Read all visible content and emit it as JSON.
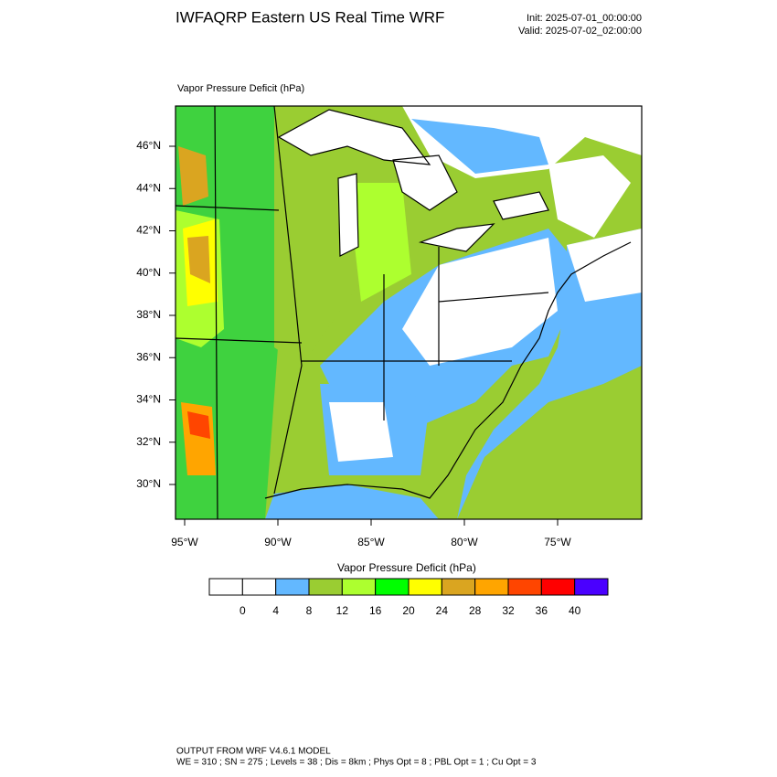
{
  "header": {
    "title": "IWFAQRP Eastern US Real Time WRF",
    "init": "Init: 2025-07-01_00:00:00",
    "valid": "Valid: 2025-07-02_02:00:00"
  },
  "map": {
    "title": "Vapor Pressure Deficit   (hPa)",
    "lat_labels": [
      "46°N",
      "44°N",
      "42°N",
      "40°N",
      "38°N",
      "36°N",
      "34°N",
      "32°N",
      "30°N"
    ],
    "lon_labels": [
      "95°W",
      "90°W",
      "85°W",
      "80°W",
      "75°W"
    ]
  },
  "colorbar": {
    "title": "Vapor Pressure Deficit   (hPa)",
    "labels": [
      "0",
      "4",
      "8",
      "12",
      "16",
      "20",
      "24",
      "28",
      "32",
      "36",
      "40"
    ],
    "colors": [
      "#ffffff",
      "#ffffff",
      "#63b8ff",
      "#9acd32",
      "#adff2f",
      "#00ff00",
      "#ffff00",
      "#daa520",
      "#ffa500",
      "#ff4500",
      "#ff0000",
      "#4a00ff"
    ]
  },
  "footer": {
    "line1": "OUTPUT FROM WRF V4.6.1 MODEL",
    "line2": "WE = 310 ; SN = 275 ; Levels = 38 ; Dis = 8km ; Phys Opt = 8 ; PBL Opt = 1 ; Cu Opt = 3"
  }
}
